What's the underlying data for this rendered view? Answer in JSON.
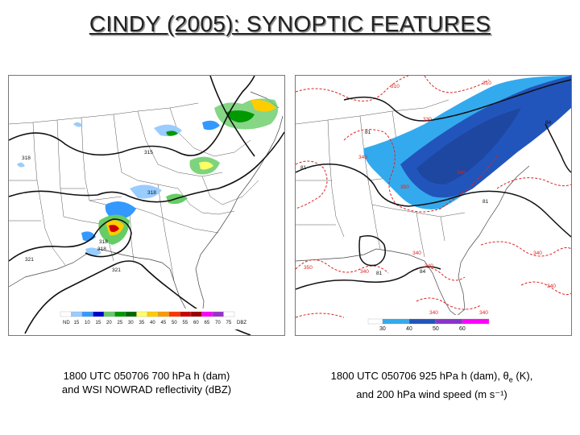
{
  "title": "CINDY (2005): SYNOPTIC FEATURES",
  "left_panel": {
    "caption_line1": "1800 UTC 050706 700 hPa h (dam)",
    "caption_line2": "and WSI NOWRAD reflectivity (dBZ)",
    "contour_labels": [
      "318",
      "315",
      "318",
      "321",
      "321",
      "318",
      "318"
    ],
    "colorbar": {
      "labels": [
        "ND",
        "15",
        "10",
        "15",
        "20",
        "25",
        "30",
        "35",
        "40",
        "45",
        "50",
        "55",
        "60",
        "65",
        "70",
        "75",
        "DBZ"
      ],
      "colors": [
        "#ffffff",
        "#99ccff",
        "#3399ff",
        "#0000cc",
        "#66cc66",
        "#009900",
        "#006600",
        "#ffff66",
        "#ffcc00",
        "#ff9900",
        "#ff3300",
        "#cc0000",
        "#990000",
        "#ff00ff",
        "#9933cc",
        "#ffffff"
      ]
    }
  },
  "right_panel": {
    "caption_line1": "1800 UTC 050706 925 hPa h (dam), θ",
    "caption_sub": "e",
    "caption_line1_end": " (K),",
    "caption_line2": "and 200 hPa wind speed (m s⁻¹)",
    "contour_labels_height": [
      "81",
      "81",
      "81",
      "84",
      "81",
      "84"
    ],
    "contour_labels_theta": [
      "310",
      "310",
      "330",
      "340",
      "350",
      "340",
      "350",
      "340",
      "340",
      "350",
      "340",
      "350",
      "340",
      "340",
      "340",
      "340"
    ],
    "colorbar": {
      "labels": [
        "30",
        "40",
        "50",
        "60"
      ],
      "colors": [
        "#33aaee",
        "#2255bb",
        "#8833cc",
        "#ff00ff"
      ]
    }
  }
}
